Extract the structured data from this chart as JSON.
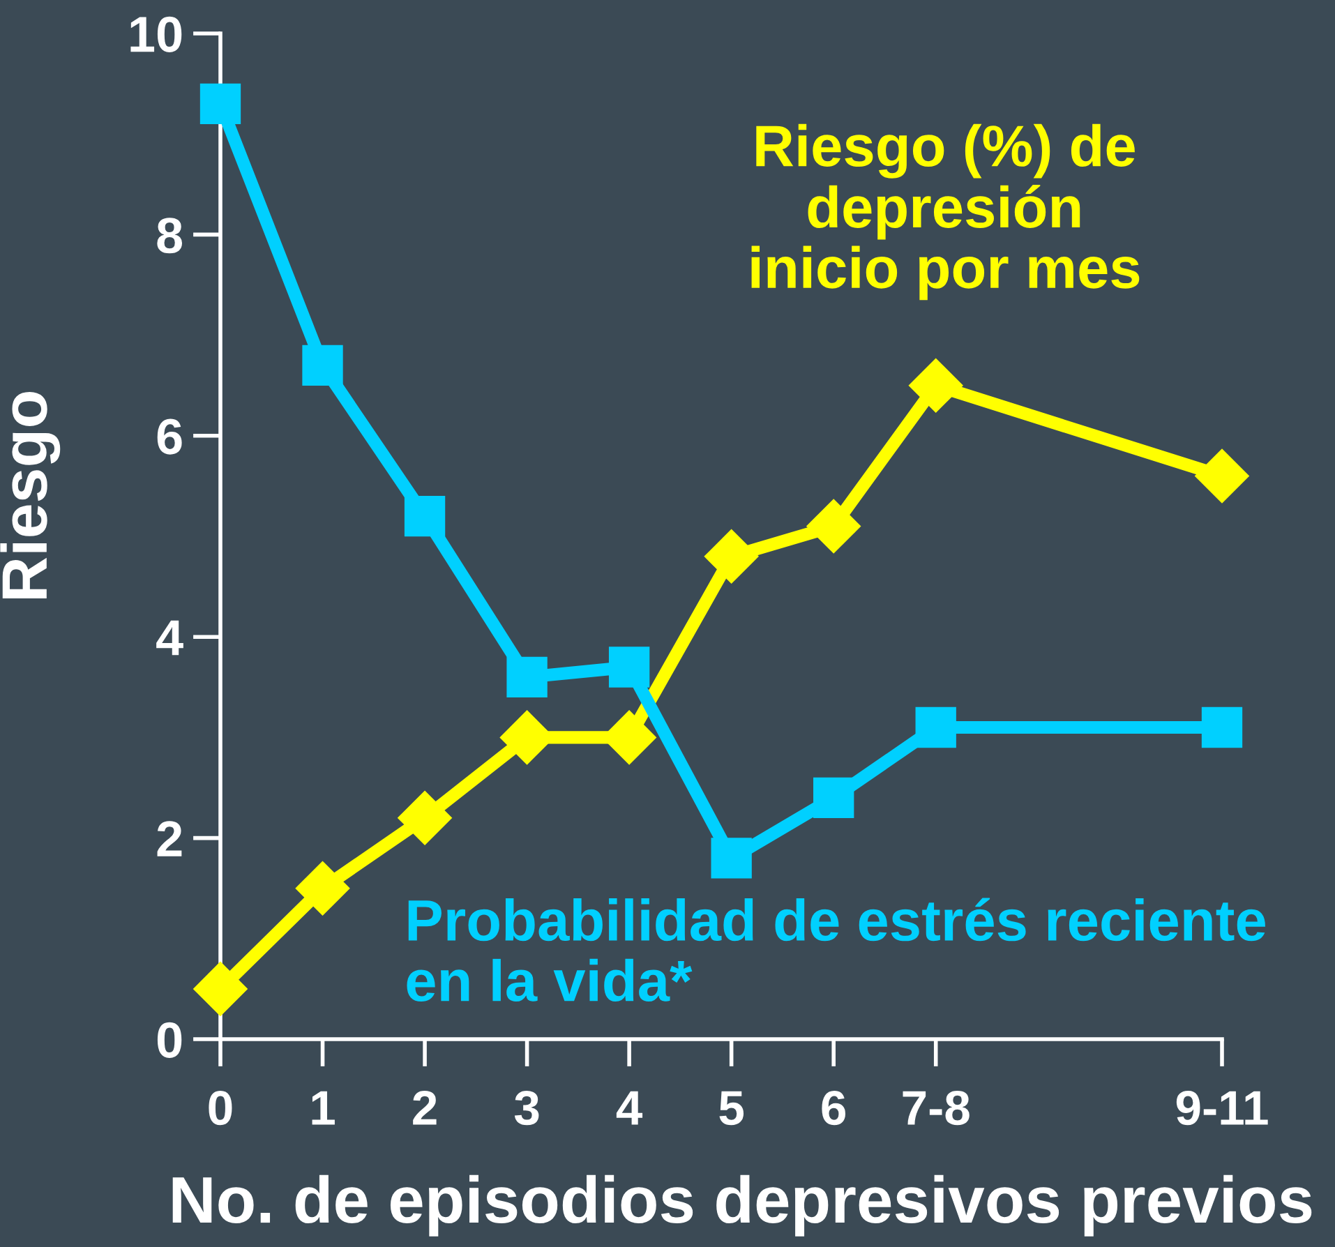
{
  "chart_data": {
    "type": "line",
    "xlabel": "No. de episodios depresivos previos",
    "ylabel": "Riesgo",
    "x": [
      0,
      1,
      2,
      3,
      4,
      5,
      6,
      7,
      9.8
    ],
    "xlim": [
      0,
      9.8
    ],
    "xticks": [
      0,
      1,
      2,
      3,
      4,
      5,
      6,
      {
        "value": 7,
        "label": "7-8"
      },
      {
        "value": 9.8,
        "label": "9-11"
      }
    ],
    "ylim": [
      0,
      10
    ],
    "yticks": [
      0,
      2,
      4,
      6,
      8,
      10
    ],
    "line_style": "solid",
    "series": [
      {
        "name": "Riesgo (%) de\ndepresión\ninicio por mes",
        "color": "#ffff00",
        "marker": "diamond",
        "values": [
          0.5,
          1.5,
          2.2,
          3.0,
          3.0,
          4.8,
          5.1,
          6.5,
          5.6
        ]
      },
      {
        "name": "Probabilidad de estrés reciente\nen la vida*",
        "color": "#00d0ff",
        "marker": "square",
        "values": [
          9.3,
          6.7,
          5.2,
          3.6,
          3.7,
          1.8,
          2.4,
          3.1,
          3.1
        ]
      }
    ]
  }
}
